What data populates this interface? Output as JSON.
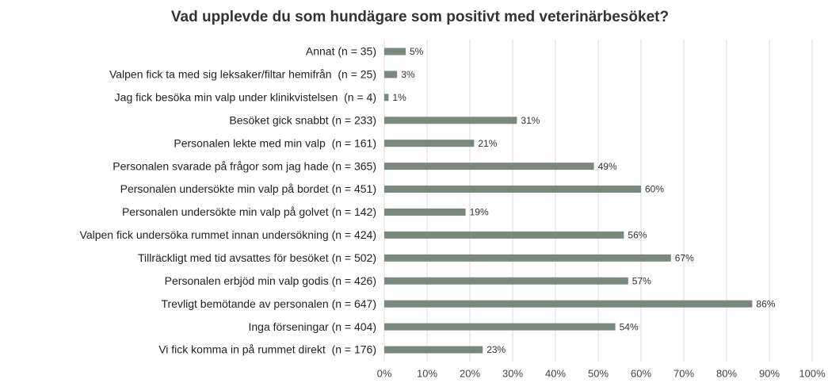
{
  "chart_data": {
    "type": "hbar",
    "title": "Vad upplevde du som hundägare som positivt med veterinärbesöket?",
    "categories": [
      "Annat (n = 35)",
      "Valpen fick ta med sig leksaker/filtar hemifrån  (n = 25)",
      "Jag fick besöka min valp under klinikvistelsen  (n = 4)",
      "Besöket gick snabbt (n = 233)",
      "Personalen lekte med min valp  (n = 161)",
      "Personalen svarade på frågor som jag hade (n = 365)",
      "Personalen undersökte min valp på bordet (n = 451)",
      "Personalen undersökte min valp på golvet (n = 142)",
      "Valpen fick undersöka rummet innan undersökning (n = 424)",
      "Tillräckligt med tid avsattes för besöket (n = 502)",
      "Personalen erbjöd min valp godis (n = 426)",
      "Trevligt bemötande av personalen (n = 647)",
      "Inga förseningar (n = 404)",
      "Vi fick komma in på rummet direkt  (n = 176)"
    ],
    "values": [
      5,
      3,
      1,
      31,
      21,
      49,
      60,
      19,
      56,
      67,
      57,
      86,
      54,
      23
    ],
    "value_labels": [
      "5%",
      "3%",
      "1%",
      "31%",
      "21%",
      "49%",
      "60%",
      "19%",
      "56%",
      "67%",
      "57%",
      "86%",
      "54%",
      "23%"
    ],
    "color": "#7a887e",
    "xlim": [
      0,
      100
    ],
    "xticks": [
      {
        "value": 0,
        "label": "0%"
      },
      {
        "value": 10,
        "label": "10%"
      },
      {
        "value": 20,
        "label": "20%"
      },
      {
        "value": 30,
        "label": "30%"
      },
      {
        "value": 40,
        "label": "40%"
      },
      {
        "value": 50,
        "label": "50%"
      },
      {
        "value": 60,
        "label": "60%"
      },
      {
        "value": 70,
        "label": "70%"
      },
      {
        "value": 80,
        "label": "80%"
      },
      {
        "value": 90,
        "label": "90%"
      },
      {
        "value": 100,
        "label": "100%"
      }
    ],
    "grid": true
  }
}
